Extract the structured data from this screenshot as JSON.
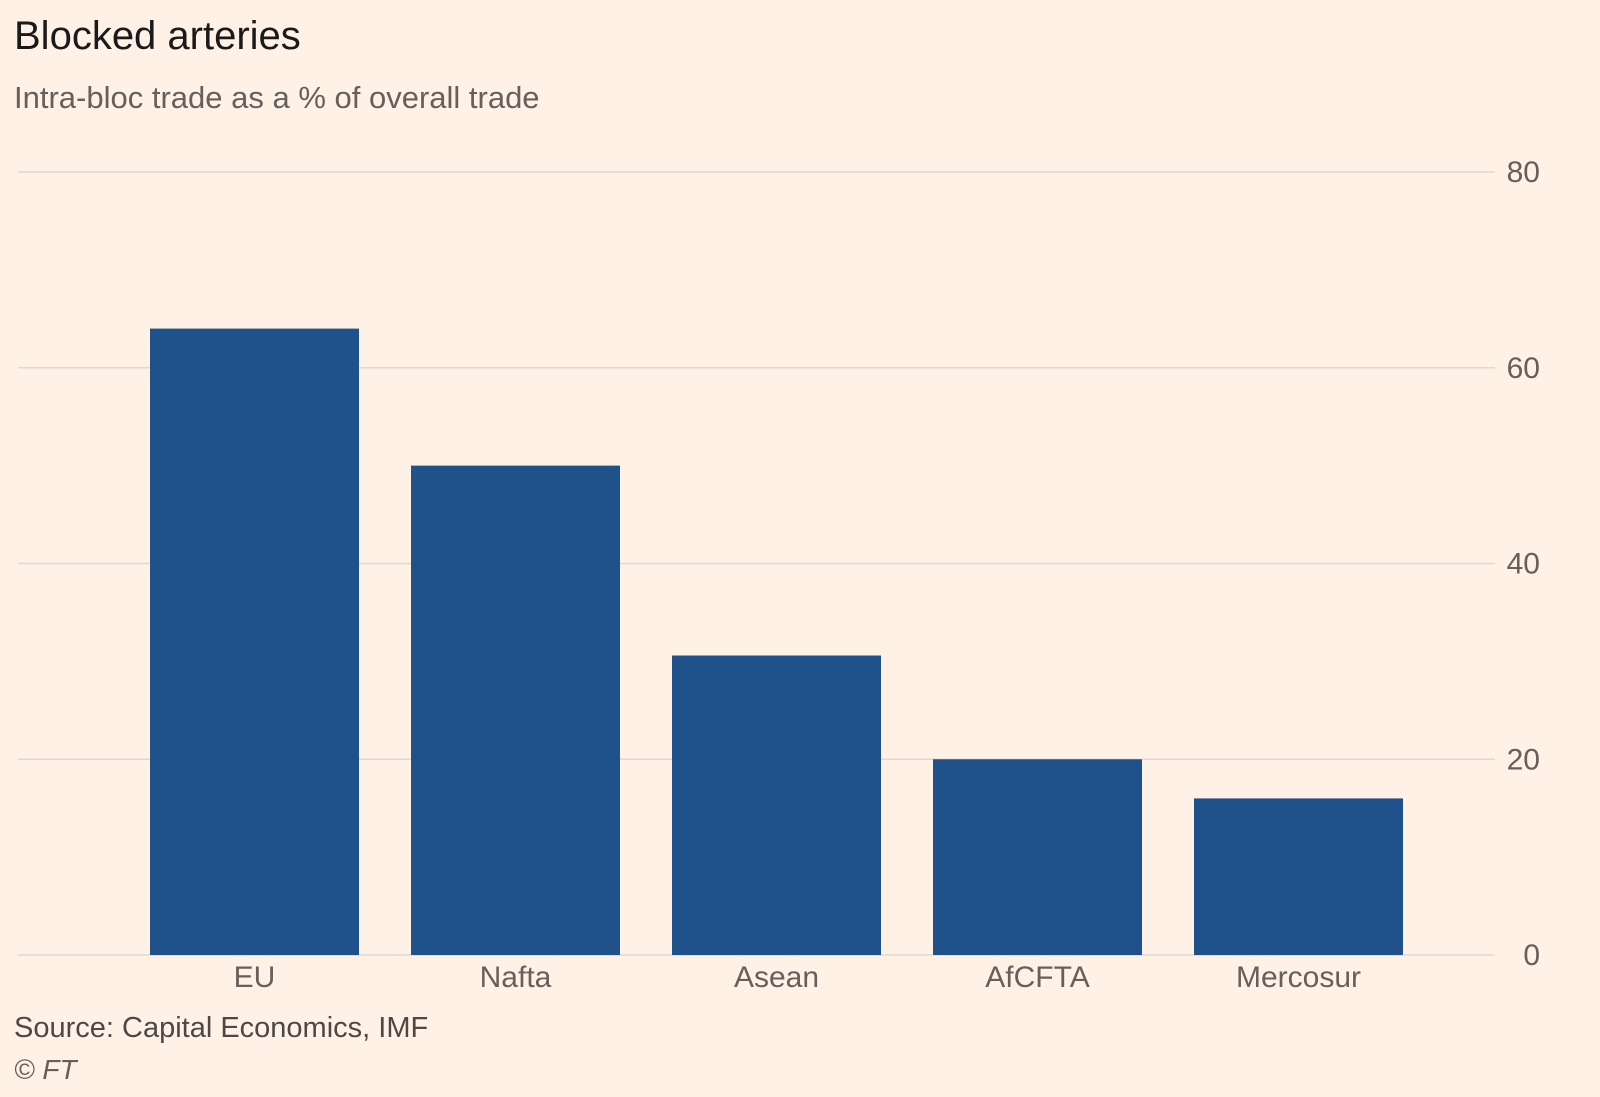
{
  "header": {
    "title": "Blocked arteries",
    "subtitle": "Intra-bloc trade as a % of overall trade"
  },
  "footer": {
    "source": "Source: Capital Economics, IMF",
    "copyright": "© FT"
  },
  "colors": {
    "background": "#fff1e5",
    "bar": "#1f528a",
    "gridline": "#e0d8d2",
    "axis_text": "#66605c"
  },
  "chart_data": {
    "type": "bar",
    "title": "Blocked arteries",
    "subtitle": "Intra-bloc trade as a % of overall trade",
    "categories": [
      "EU",
      "Nafta",
      "Asean",
      "AfCFTA",
      "Mercosur"
    ],
    "values": [
      64,
      50,
      30.6,
      20,
      16
    ],
    "xlabel": "",
    "ylabel": "",
    "ylim": [
      0,
      80
    ],
    "yticks": [
      0,
      20,
      40,
      60,
      80
    ],
    "y_axis_side": "right",
    "grid": true,
    "legend": "none"
  }
}
